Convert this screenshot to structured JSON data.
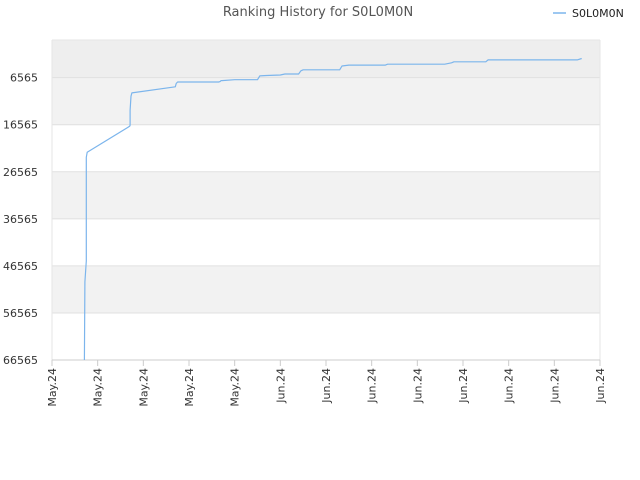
{
  "chart_data": {
    "type": "line",
    "title": "Ranking History for S0L0M0N",
    "xlabel": "",
    "ylabel": "",
    "legend": {
      "position": "top-right",
      "entries": [
        "S0L0M0N"
      ]
    },
    "grid": true,
    "y_inverted": true,
    "ylim": [
      -1435,
      66565
    ],
    "y_ticks": [
      "6565",
      "16565",
      "26565",
      "36565",
      "46565",
      "56565",
      "66565"
    ],
    "x_ticks": [
      "May.24",
      "May.24",
      "May.24",
      "May.24",
      "May.24",
      "Jun.24",
      "Jun.24",
      "Jun.24",
      "Jun.24",
      "Jun.24",
      "Jun.24",
      "Jun.24",
      "Jun.24"
    ],
    "series": [
      {
        "name": "S0L0M0N",
        "color": "#7cb5ec",
        "x": [
          0.71,
          0.72,
          0.75,
          0.75,
          0.77,
          1.7,
          1.71,
          1.71,
          1.73,
          1.75,
          2.7,
          2.72,
          2.75,
          3.65,
          3.68,
          3.7,
          3.72,
          4.0,
          4.1,
          4.5,
          4.55,
          4.7,
          5.0,
          5.1,
          5.4,
          5.45,
          5.5,
          6.0,
          6.3,
          6.35,
          6.5,
          7.0,
          7.3,
          7.35,
          8.0,
          8.6,
          8.75,
          8.8,
          9.0,
          9.5,
          9.55,
          10.0,
          10.5,
          11.0,
          11.5,
          11.6
        ],
        "y": [
          66565,
          50000,
          45500,
          23500,
          22400,
          16900,
          16700,
          13500,
          10500,
          9800,
          8500,
          7800,
          7500,
          7500,
          7400,
          7200,
          7200,
          7000,
          7000,
          7000,
          6200,
          6100,
          6000,
          5800,
          5800,
          5100,
          4900,
          4900,
          4900,
          4100,
          3900,
          3900,
          3900,
          3700,
          3700,
          3700,
          3400,
          3200,
          3200,
          3200,
          2800,
          2800,
          2800,
          2800,
          2800,
          2500
        ]
      }
    ]
  }
}
